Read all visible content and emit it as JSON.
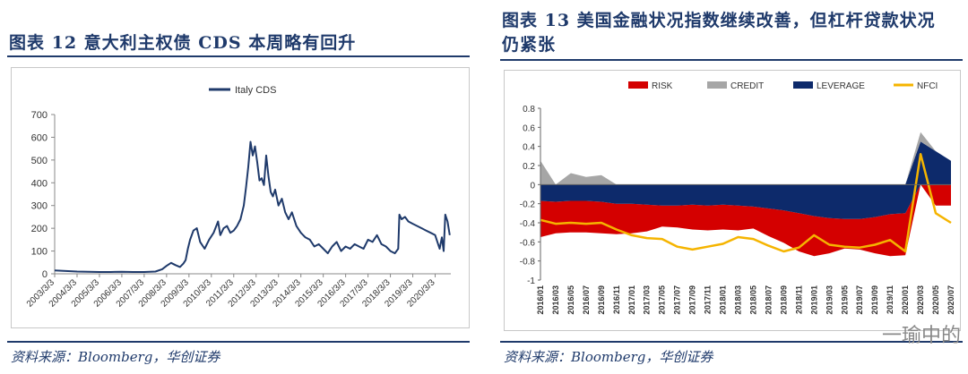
{
  "left": {
    "title": "图表 12   意大利主权债 CDS 本周略有回升",
    "source": "资料来源：Bloomberg，华创证券"
  },
  "right": {
    "title_line1": "图表 13   美国金融状况指数继续改善，但杠杆贷款状况",
    "title_line2": "仍紧张",
    "source": "资料来源：Bloomberg，华创证券",
    "watermark": "一瑜中的"
  },
  "chart_data": [
    {
      "type": "line",
      "title": "",
      "legend": [
        "Italy CDS"
      ],
      "legend_position": "top-center",
      "ylim": [
        0,
        700
      ],
      "yticks": [
        0,
        100,
        200,
        300,
        400,
        500,
        600,
        700
      ],
      "xticks": [
        "2003/3/3",
        "2004/3/3",
        "2005/3/3",
        "2006/3/3",
        "2007/3/3",
        "2008/3/3",
        "2009/3/3",
        "2010/3/3",
        "2011/3/3",
        "2012/3/3",
        "2013/3/3",
        "2014/3/3",
        "2015/3/3",
        "2016/3/3",
        "2017/3/3",
        "2018/3/3",
        "2019/3/3",
        "2020/3/3"
      ],
      "xlim": [
        2003.0,
        2020.7
      ],
      "grid": false,
      "series": [
        {
          "name": "Italy CDS",
          "color": "#1f3a6b",
          "x": [
            2003.0,
            2003.5,
            2004.0,
            2004.5,
            2005.0,
            2005.5,
            2006.0,
            2006.5,
            2007.0,
            2007.5,
            2007.8,
            2008.0,
            2008.2,
            2008.4,
            2008.6,
            2008.75,
            2008.85,
            2008.95,
            2009.05,
            2009.2,
            2009.35,
            2009.5,
            2009.7,
            2009.9,
            2010.1,
            2010.3,
            2010.4,
            2010.55,
            2010.7,
            2010.85,
            2011.0,
            2011.15,
            2011.3,
            2011.45,
            2011.55,
            2011.65,
            2011.75,
            2011.85,
            2011.95,
            2012.05,
            2012.15,
            2012.25,
            2012.35,
            2012.45,
            2012.55,
            2012.65,
            2012.75,
            2012.85,
            2013.0,
            2013.15,
            2013.3,
            2013.45,
            2013.6,
            2013.8,
            2014.0,
            2014.2,
            2014.4,
            2014.6,
            2014.8,
            2015.0,
            2015.2,
            2015.4,
            2015.6,
            2015.8,
            2016.0,
            2016.2,
            2016.4,
            2016.6,
            2016.8,
            2017.0,
            2017.2,
            2017.4,
            2017.6,
            2017.8,
            2018.0,
            2018.2,
            2018.35,
            2018.4,
            2018.5,
            2018.65,
            2018.8,
            2019.0,
            2019.2,
            2019.4,
            2019.6,
            2019.8,
            2020.0,
            2020.1,
            2020.2,
            2020.3,
            2020.38,
            2020.45,
            2020.55,
            2020.65
          ],
          "y": [
            15,
            12,
            10,
            9,
            8,
            8,
            9,
            8,
            8,
            10,
            20,
            35,
            48,
            38,
            30,
            45,
            60,
            110,
            150,
            190,
            200,
            140,
            110,
            150,
            180,
            230,
            170,
            200,
            210,
            180,
            190,
            210,
            240,
            300,
            380,
            470,
            580,
            520,
            560,
            490,
            410,
            420,
            390,
            520,
            430,
            360,
            340,
            370,
            300,
            330,
            270,
            240,
            270,
            210,
            180,
            160,
            150,
            120,
            130,
            110,
            90,
            120,
            140,
            100,
            120,
            110,
            130,
            120,
            110,
            150,
            140,
            170,
            130,
            120,
            100,
            90,
            110,
            260,
            240,
            250,
            230,
            220,
            210,
            200,
            190,
            180,
            170,
            140,
            110,
            160,
            100,
            260,
            230,
            170
          ],
          "ylim": [
            0,
            700
          ]
        }
      ]
    },
    {
      "type": "area",
      "title": "",
      "legend": [
        "RISK",
        "CREDIT",
        "LEVERAGE",
        "NFCI"
      ],
      "legend_position": "top",
      "ylim": [
        -1,
        0.8
      ],
      "yticks": [
        -1,
        -0.8,
        -0.6,
        -0.4,
        -0.2,
        0,
        0.2,
        0.4,
        0.6,
        0.8
      ],
      "xticks": [
        "2016/01",
        "2016/03",
        "2016/05",
        "2016/07",
        "2016/09",
        "2016/11",
        "2017/01",
        "2017/03",
        "2017/05",
        "2017/07",
        "2017/09",
        "2017/11",
        "2018/01",
        "2018/03",
        "2018/05",
        "2018/07",
        "2018/09",
        "2018/11",
        "2019/01",
        "2019/03",
        "2019/05",
        "2019/07",
        "2019/09",
        "2019/11",
        "2020/01",
        "2020/03",
        "2020/05",
        "2020/07"
      ],
      "grid": false,
      "series": [
        {
          "name": "LEVERAGE",
          "color": "#0d2a6b",
          "values": [
            -0.17,
            -0.18,
            -0.17,
            -0.17,
            -0.18,
            -0.2,
            -0.2,
            -0.21,
            -0.22,
            -0.22,
            -0.21,
            -0.22,
            -0.21,
            -0.22,
            -0.23,
            -0.25,
            -0.27,
            -0.3,
            -0.33,
            -0.35,
            -0.36,
            -0.36,
            -0.34,
            -0.31,
            -0.3,
            0.45,
            0.35,
            0.25
          ]
        },
        {
          "name": "RISK",
          "color": "#d40000",
          "values": [
            -0.38,
            -0.33,
            -0.33,
            -0.33,
            -0.33,
            -0.32,
            -0.31,
            -0.28,
            -0.22,
            -0.23,
            -0.26,
            -0.26,
            -0.26,
            -0.26,
            -0.23,
            -0.29,
            -0.34,
            -0.4,
            -0.42,
            -0.37,
            -0.31,
            -0.32,
            -0.38,
            -0.44,
            -0.44,
            0.0,
            -0.22,
            -0.22
          ]
        },
        {
          "name": "CREDIT",
          "color": "#a6a6a6",
          "values": [
            0.25,
            0.0,
            0.12,
            0.08,
            0.1,
            0.0,
            0.0,
            0.0,
            0.0,
            0.0,
            0.0,
            0.0,
            0.0,
            0.0,
            0.0,
            0.0,
            0.0,
            0.0,
            0.0,
            0.0,
            0.0,
            0.0,
            0.0,
            0.0,
            0.0,
            0.1,
            -0.02,
            -0.02
          ]
        },
        {
          "name": "NFCI",
          "color": "#f5b400",
          "values": [
            -0.37,
            -0.41,
            -0.4,
            -0.41,
            -0.4,
            -0.47,
            -0.53,
            -0.56,
            -0.57,
            -0.65,
            -0.68,
            -0.65,
            -0.62,
            -0.55,
            -0.57,
            -0.64,
            -0.7,
            -0.66,
            -0.53,
            -0.63,
            -0.65,
            -0.66,
            -0.63,
            -0.58,
            -0.7,
            0.32,
            -0.3,
            -0.4
          ]
        }
      ]
    }
  ]
}
